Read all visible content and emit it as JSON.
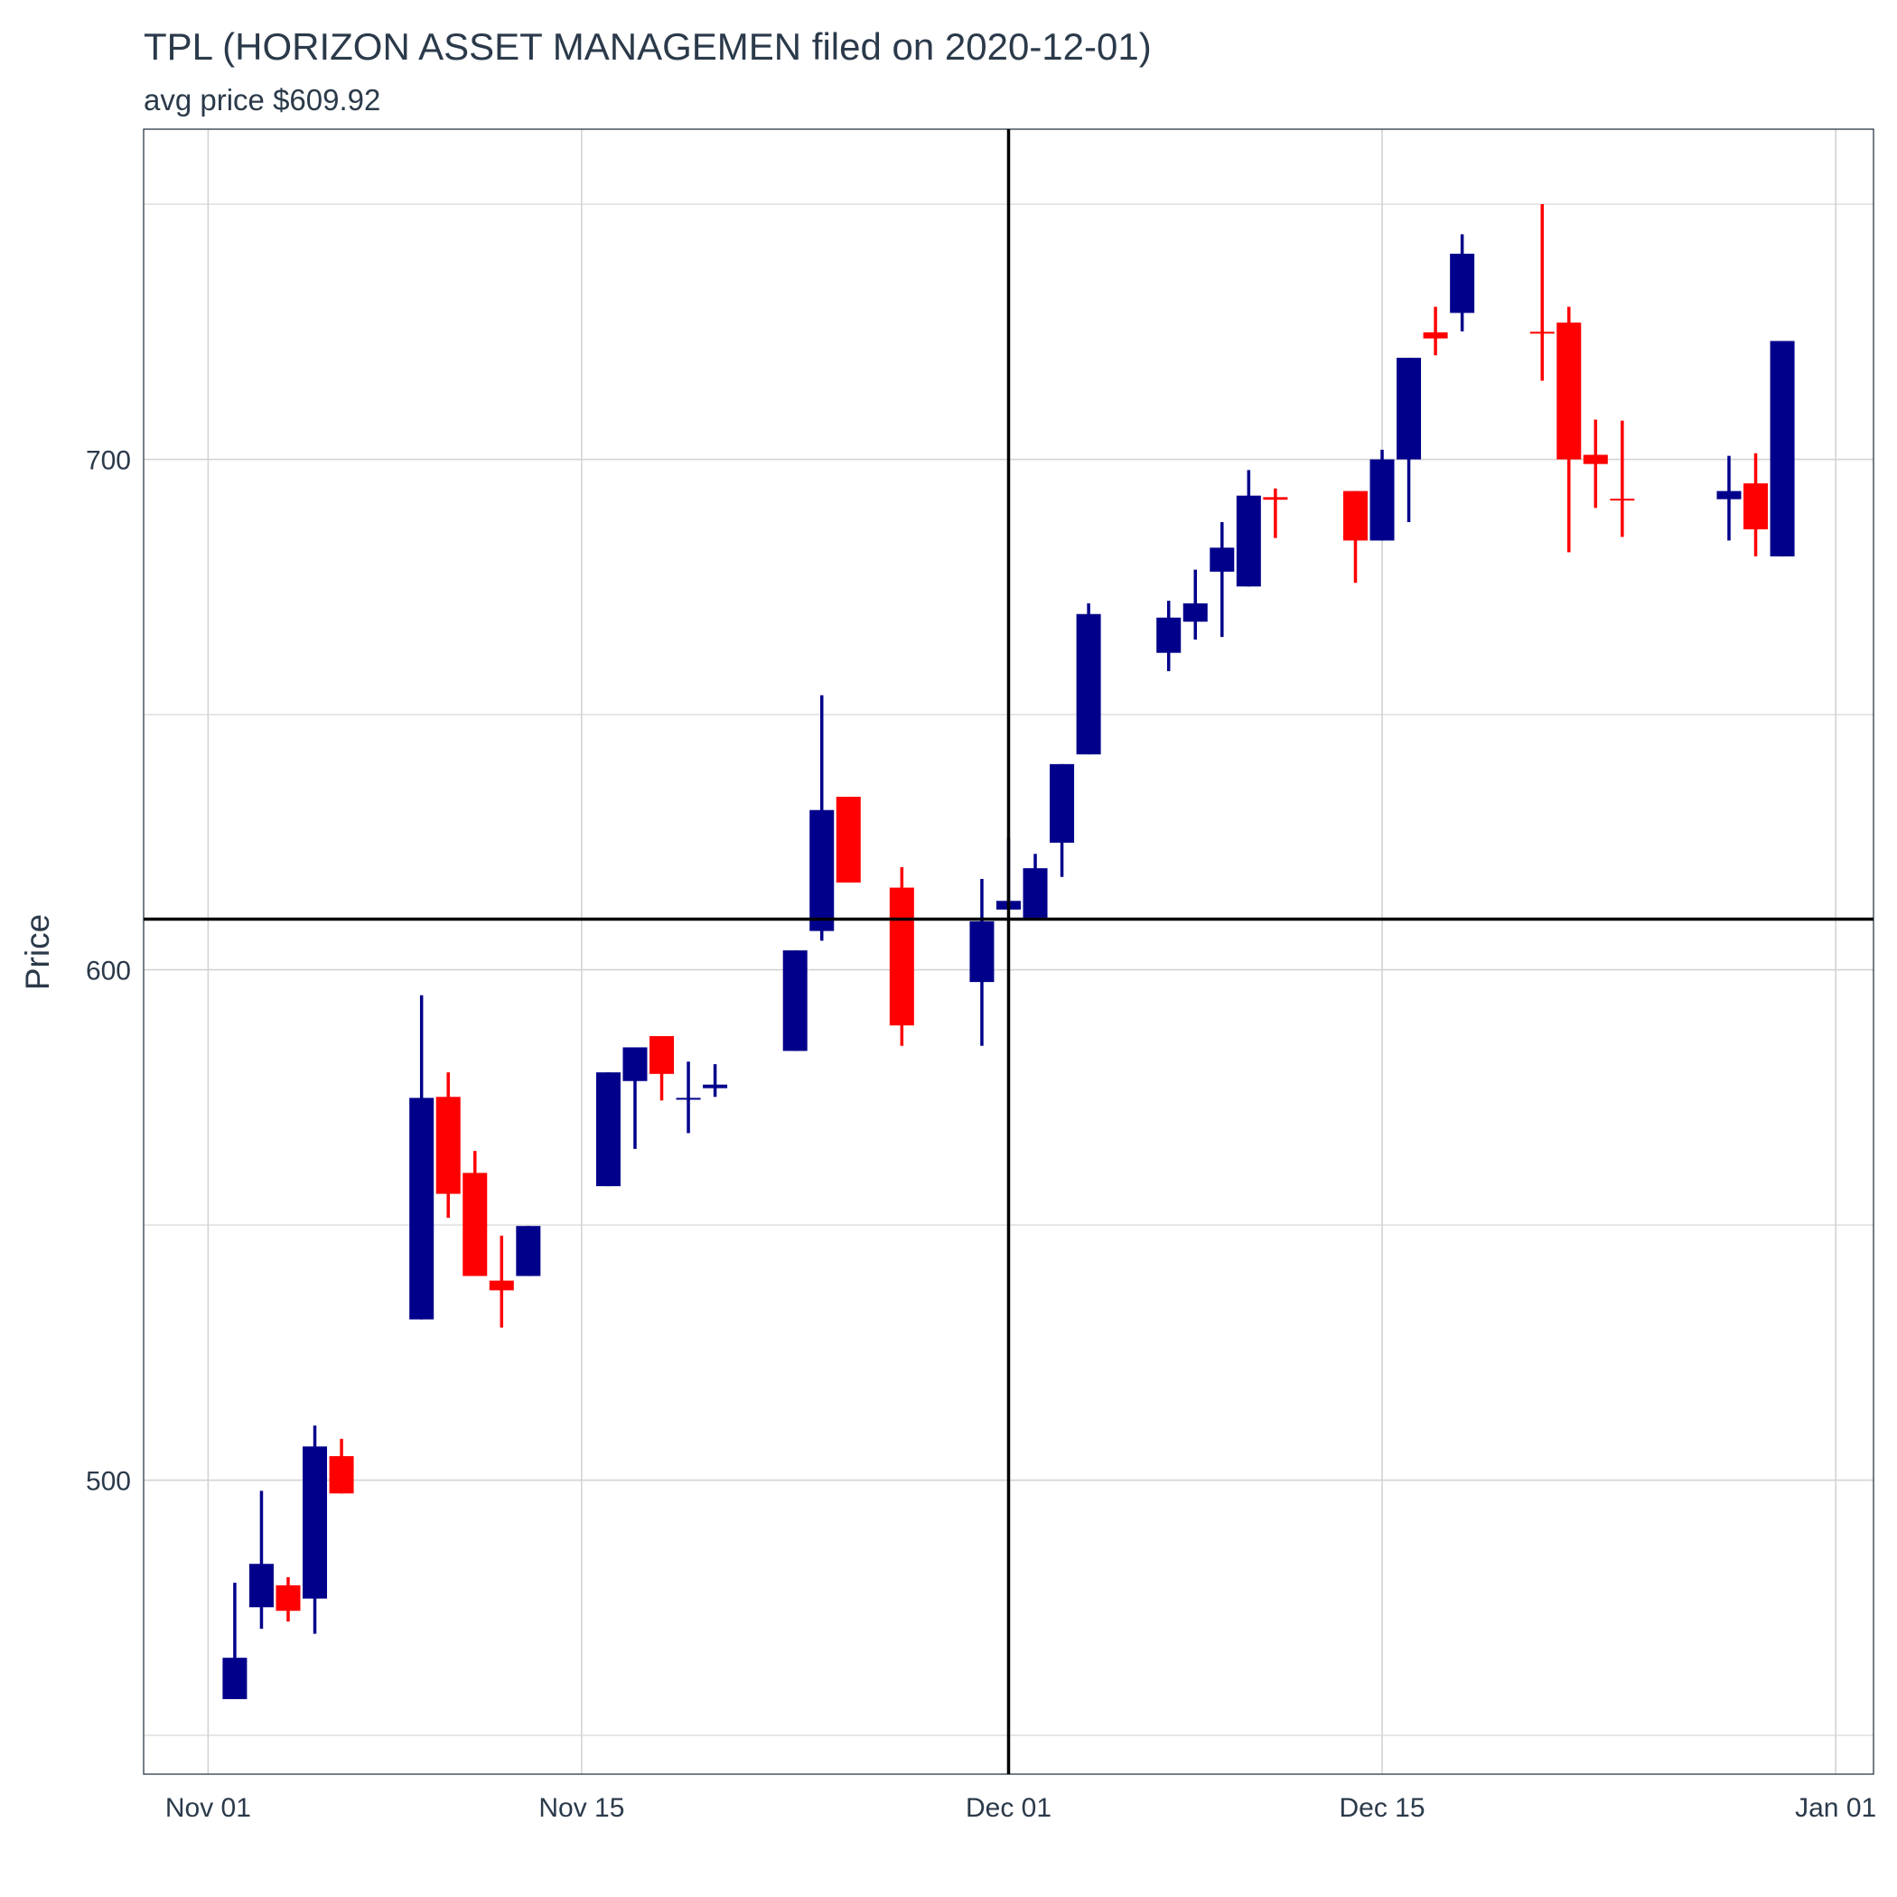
{
  "chart_data": {
    "type": "candlestick",
    "title": "TPL (HORIZON ASSET MANAGEMEN filed on 2020-12-01)",
    "subtitle": "avg price $609.92",
    "y_label": "Price",
    "x": [
      "2020-11-02",
      "2020-11-03",
      "2020-11-04",
      "2020-11-05",
      "2020-11-06",
      "2020-11-09",
      "2020-11-10",
      "2020-11-11",
      "2020-11-12",
      "2020-11-13",
      "2020-11-16",
      "2020-11-17",
      "2020-11-18",
      "2020-11-19",
      "2020-11-20",
      "2020-11-23",
      "2020-11-24",
      "2020-11-25",
      "2020-11-27",
      "2020-11-30",
      "2020-12-01",
      "2020-12-02",
      "2020-12-03",
      "2020-12-04",
      "2020-12-07",
      "2020-12-08",
      "2020-12-09",
      "2020-12-10",
      "2020-12-11",
      "2020-12-14",
      "2020-12-15",
      "2020-12-16",
      "2020-12-17",
      "2020-12-18",
      "2020-12-21",
      "2020-12-22",
      "2020-12-23",
      "2020-12-24",
      "2020-12-28",
      "2020-12-29",
      "2020-12-30"
    ],
    "open": [
      457.1,
      475.1,
      479.4,
      476.8,
      504.7,
      531.5,
      575.1,
      560.2,
      539.1,
      540.0,
      557.6,
      578.2,
      587.0,
      574.6,
      576.8,
      584.1,
      607.6,
      633.9,
      616.1,
      597.6,
      611.8,
      610.2,
      624.9,
      642.2,
      662.1,
      668.2,
      678.0,
      675.1,
      692.6,
      693.8,
      684.1,
      700.0,
      724.9,
      728.7,
      725.0,
      726.8,
      700.9,
      692.3,
      692.2,
      695.3,
      681.0
    ],
    "high": [
      479.9,
      497.9,
      481.0,
      510.7,
      508.1,
      595.0,
      579.9,
      564.5,
      547.9,
      549.8,
      579.9,
      584.8,
      587.0,
      582.0,
      581.5,
      603.8,
      653.8,
      633.9,
      620.1,
      617.8,
      625.8,
      622.7,
      640.3,
      671.8,
      672.3,
      678.4,
      687.7,
      697.9,
      694.3,
      693.8,
      701.9,
      719.9,
      729.9,
      744.1,
      750.0,
      729.9,
      707.8,
      707.6,
      700.7,
      701.2,
      723.2
    ],
    "low": [
      457.1,
      470.9,
      472.3,
      469.9,
      497.4,
      531.5,
      551.4,
      540.0,
      529.9,
      540.0,
      557.6,
      564.9,
      574.4,
      568.0,
      575.1,
      584.1,
      605.7,
      617.1,
      585.1,
      585.1,
      611.8,
      610.2,
      618.2,
      642.2,
      658.5,
      664.7,
      665.2,
      675.1,
      684.6,
      675.8,
      684.1,
      687.7,
      720.4,
      725.1,
      715.4,
      681.8,
      690.5,
      684.8,
      684.1,
      681.0,
      681.0
    ],
    "close": [
      465.2,
      483.6,
      474.4,
      506.6,
      497.4,
      574.9,
      556.1,
      540.0,
      537.2,
      549.8,
      579.9,
      584.8,
      579.6,
      574.9,
      577.5,
      603.8,
      631.3,
      617.1,
      589.1,
      609.5,
      613.5,
      619.9,
      640.3,
      669.7,
      669.0,
      671.8,
      682.7,
      692.9,
      692.1,
      684.1,
      700.0,
      719.9,
      723.7,
      740.3,
      724.7,
      700.0,
      699.1,
      692.1,
      693.8,
      686.3,
      723.2
    ],
    "up_color": "#00008b",
    "down_color": "#ff0000",
    "hline": 609.92,
    "vline": "2020-12-01",
    "xlim": [
      "2020-10-29T14:00",
      "2021-01-02T10:00"
    ],
    "xticks": [
      {
        "value": "2020-11-01",
        "label": "Nov 01"
      },
      {
        "value": "2020-11-15",
        "label": "Nov 15"
      },
      {
        "value": "2020-12-01",
        "label": "Dec 01"
      },
      {
        "value": "2020-12-15",
        "label": "Dec 15"
      },
      {
        "value": "2021-01-01",
        "label": "Jan 01"
      }
    ],
    "ylim": [
      442.4,
      764.7
    ],
    "yticks": [
      500,
      600,
      700
    ],
    "yminor": [
      450,
      550,
      650,
      750
    ],
    "grid": true
  }
}
